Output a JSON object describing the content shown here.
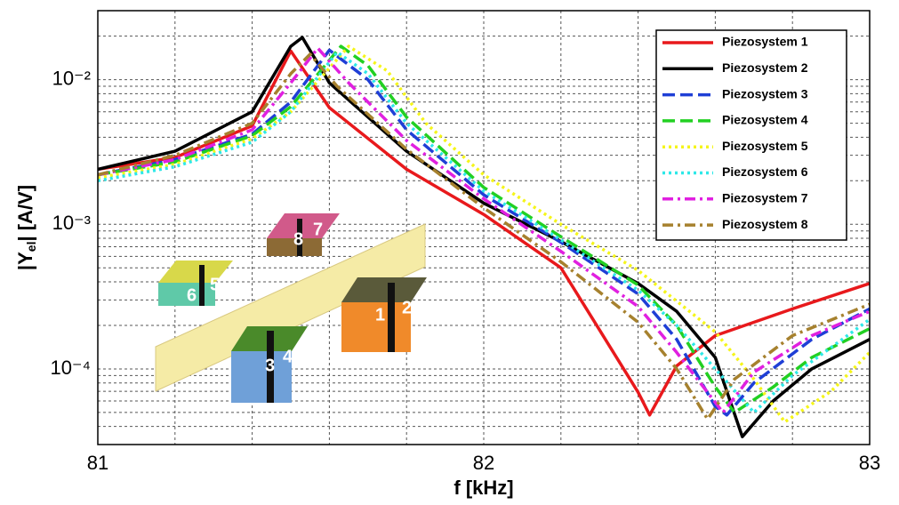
{
  "chart_data": {
    "type": "line",
    "log_y": true,
    "grid": true,
    "xlabel": "f [kHz]",
    "ylabel": [
      "|Y",
      "el",
      "| [A/V]"
    ],
    "xlim": [
      81,
      83
    ],
    "ylim": [
      3e-05,
      0.03
    ],
    "xticks": [
      81,
      82,
      83
    ],
    "yticks": [
      {
        "value": 0.0001,
        "label": "10⁻⁴"
      },
      {
        "value": 0.001,
        "label": "10⁻³"
      },
      {
        "value": 0.01,
        "label": "10⁻²"
      }
    ],
    "xminorticks": [
      81.2,
      81.4,
      81.6,
      81.8,
      82.2,
      82.4,
      82.6,
      82.8
    ],
    "yminorticks": [
      4e-05,
      5e-05,
      6e-05,
      7e-05,
      8e-05,
      9e-05,
      0.0002,
      0.0003,
      0.0004,
      0.0005,
      0.0006,
      0.0007,
      0.0008,
      0.0009,
      0.002,
      0.003,
      0.004,
      0.005,
      0.006,
      0.007,
      0.008,
      0.009,
      0.02
    ],
    "inset_labels": [
      "1",
      "2",
      "3",
      "4",
      "6",
      "5",
      "8",
      "7"
    ],
    "series": [
      {
        "name": "Piezosystem 1",
        "color": "#e8191c",
        "dash": "solid",
        "x": [
          81,
          81.2,
          81.4,
          81.5,
          81.6,
          81.8,
          82,
          82.2,
          82.3,
          82.4,
          82.43,
          82.5,
          82.6,
          82.8,
          83
        ],
        "values": [
          0.0024,
          0.0029,
          0.0048,
          0.0158,
          0.0064,
          0.0024,
          0.00117,
          0.0005,
          0.000186,
          6.9e-05,
          4.8e-05,
          0.000105,
          0.00017,
          0.00026,
          0.00039
        ]
      },
      {
        "name": "Piezosystem 2",
        "color": "#000000",
        "dash": "solid",
        "x": [
          81,
          81.2,
          81.4,
          81.5,
          81.53,
          81.6,
          81.8,
          82,
          82.2,
          82.4,
          82.5,
          82.6,
          82.67,
          82.75,
          82.85,
          83
        ],
        "values": [
          0.0024,
          0.0032,
          0.006,
          0.017,
          0.0196,
          0.0095,
          0.0032,
          0.0014,
          0.00076,
          0.00039,
          0.00025,
          0.00012,
          3.4e-05,
          6e-05,
          0.0001,
          0.00016
        ]
      },
      {
        "name": "Piezosystem 3",
        "color": "#1f3fd6",
        "dash": "dashed",
        "x": [
          81,
          81.2,
          81.4,
          81.5,
          81.6,
          81.7,
          81.8,
          82,
          82.2,
          82.4,
          82.5,
          82.6,
          82.63,
          82.7,
          82.85,
          83
        ],
        "values": [
          0.0022,
          0.0028,
          0.0042,
          0.007,
          0.016,
          0.01,
          0.0045,
          0.0016,
          0.00075,
          0.00033,
          0.00016,
          5.5e-05,
          4.8e-05,
          8e-05,
          0.00016,
          0.00026
        ]
      },
      {
        "name": "Piezosystem 4",
        "color": "#22d022",
        "dash": "dashed",
        "x": [
          81,
          81.2,
          81.4,
          81.5,
          81.63,
          81.7,
          81.8,
          82,
          82.2,
          82.4,
          82.5,
          82.6,
          82.65,
          82.75,
          82.85,
          83
        ],
        "values": [
          0.0022,
          0.0027,
          0.0041,
          0.0065,
          0.017,
          0.0125,
          0.0055,
          0.0018,
          0.00082,
          0.00038,
          0.0002,
          7.5e-05,
          5e-05,
          7.5e-05,
          0.00012,
          0.00019
        ]
      },
      {
        "name": "Piezosystem 5",
        "color": "#f5f51a",
        "dash": "dotted",
        "x": [
          81,
          81.2,
          81.4,
          81.5,
          81.65,
          81.75,
          81.85,
          82,
          82.2,
          82.4,
          82.6,
          82.7,
          82.78,
          82.9,
          83
        ],
        "values": [
          0.0021,
          0.0026,
          0.0039,
          0.006,
          0.017,
          0.0115,
          0.005,
          0.0022,
          0.001,
          0.00048,
          0.00018,
          8.5e-05,
          4.3e-05,
          7e-05,
          0.00013
        ]
      },
      {
        "name": "Piezosystem 6",
        "color": "#2ee8e8",
        "dash": "dotted",
        "x": [
          81,
          81.2,
          81.4,
          81.5,
          81.62,
          81.7,
          81.8,
          82,
          82.2,
          82.4,
          82.5,
          82.6,
          82.7,
          82.8,
          83
        ],
        "values": [
          0.002,
          0.0025,
          0.0037,
          0.006,
          0.0155,
          0.011,
          0.005,
          0.0017,
          0.00078,
          0.00035,
          0.0002,
          0.0001,
          5e-05,
          9e-05,
          0.00022
        ]
      },
      {
        "name": "Piezosystem 7",
        "color": "#e020e0",
        "dash": "dashdot",
        "x": [
          81,
          81.2,
          81.4,
          81.5,
          81.57,
          81.65,
          81.8,
          82,
          82.2,
          82.4,
          82.5,
          82.62,
          82.7,
          82.85,
          83
        ],
        "values": [
          0.0022,
          0.0028,
          0.0045,
          0.0095,
          0.0165,
          0.0095,
          0.0038,
          0.0015,
          0.00065,
          0.00027,
          0.00013,
          5e-05,
          9.5e-05,
          0.00017,
          0.00025
        ]
      },
      {
        "name": "Piezosystem 8",
        "color": "#a6812e",
        "dash": "dashdot",
        "x": [
          81,
          81.2,
          81.4,
          81.5,
          81.55,
          81.62,
          81.8,
          82,
          82.2,
          82.4,
          82.5,
          82.58,
          82.65,
          82.8,
          83
        ],
        "values": [
          0.0022,
          0.003,
          0.005,
          0.011,
          0.015,
          0.009,
          0.0033,
          0.0013,
          0.00055,
          0.00021,
          0.0001,
          4.5e-05,
          8.5e-05,
          0.00017,
          0.00028
        ]
      }
    ]
  }
}
